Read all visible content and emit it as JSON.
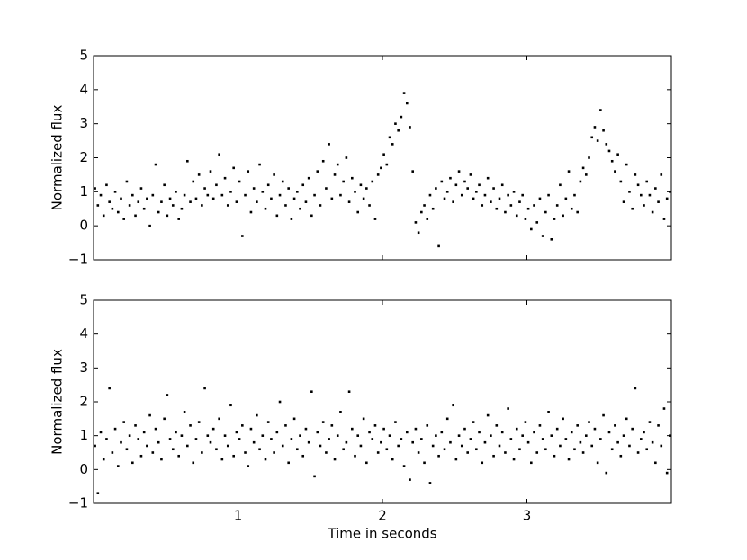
{
  "chart_data": [
    {
      "type": "scatter",
      "ylabel": "Normalized flux",
      "color": "#000000",
      "xlim": [
        0,
        4
      ],
      "ylim": [
        -1,
        5
      ],
      "xticks": [
        1,
        2,
        3
      ],
      "show_xtick_labels": false,
      "yticks": [
        {
          "value": -1,
          "label": "−1"
        },
        0,
        1,
        2,
        3,
        4,
        5
      ],
      "x": [
        0.01,
        0.03,
        0.05,
        0.07,
        0.09,
        0.11,
        0.13,
        0.15,
        0.17,
        0.19,
        0.21,
        0.23,
        0.25,
        0.27,
        0.29,
        0.31,
        0.33,
        0.35,
        0.37,
        0.39,
        0.41,
        0.43,
        0.45,
        0.47,
        0.49,
        0.51,
        0.53,
        0.55,
        0.57,
        0.59,
        0.61,
        0.63,
        0.65,
        0.67,
        0.69,
        0.71,
        0.73,
        0.75,
        0.77,
        0.79,
        0.81,
        0.83,
        0.85,
        0.87,
        0.89,
        0.91,
        0.93,
        0.95,
        0.97,
        0.99,
        1.01,
        1.03,
        1.05,
        1.07,
        1.09,
        1.11,
        1.13,
        1.15,
        1.17,
        1.19,
        1.21,
        1.23,
        1.25,
        1.27,
        1.29,
        1.31,
        1.33,
        1.35,
        1.37,
        1.39,
        1.41,
        1.43,
        1.45,
        1.47,
        1.49,
        1.51,
        1.53,
        1.55,
        1.57,
        1.59,
        1.61,
        1.63,
        1.65,
        1.67,
        1.69,
        1.71,
        1.73,
        1.75,
        1.77,
        1.79,
        1.81,
        1.83,
        1.85,
        1.87,
        1.89,
        1.91,
        1.93,
        1.95,
        1.97,
        1.99,
        2.01,
        2.03,
        2.05,
        2.07,
        2.09,
        2.11,
        2.13,
        2.15,
        2.17,
        2.19,
        2.21,
        2.23,
        2.25,
        2.27,
        2.29,
        2.31,
        2.33,
        2.35,
        2.37,
        2.39,
        2.41,
        2.43,
        2.45,
        2.47,
        2.49,
        2.51,
        2.53,
        2.55,
        2.57,
        2.59,
        2.61,
        2.63,
        2.65,
        2.67,
        2.69,
        2.71,
        2.73,
        2.75,
        2.77,
        2.79,
        2.81,
        2.83,
        2.85,
        2.87,
        2.89,
        2.91,
        2.93,
        2.95,
        2.97,
        2.99,
        3.01,
        3.03,
        3.05,
        3.07,
        3.09,
        3.11,
        3.13,
        3.15,
        3.17,
        3.19,
        3.21,
        3.23,
        3.25,
        3.27,
        3.29,
        3.31,
        3.33,
        3.35,
        3.37,
        3.39,
        3.41,
        3.43,
        3.45,
        3.47,
        3.49,
        3.51,
        3.53,
        3.55,
        3.57,
        3.59,
        3.61,
        3.63,
        3.65,
        3.67,
        3.69,
        3.71,
        3.73,
        3.75,
        3.77,
        3.79,
        3.81,
        3.83,
        3.85,
        3.87,
        3.89,
        3.91,
        3.93,
        3.95,
        3.97,
        3.99
      ],
      "values": [
        1.1,
        0.6,
        0.9,
        0.3,
        1.2,
        0.7,
        0.5,
        1.0,
        0.4,
        0.8,
        0.2,
        1.3,
        0.6,
        0.9,
        0.3,
        0.7,
        1.1,
        0.5,
        0.8,
        0.0,
        0.9,
        1.8,
        0.4,
        0.7,
        1.2,
        0.3,
        0.8,
        0.6,
        1.0,
        0.2,
        0.5,
        0.9,
        1.9,
        0.7,
        1.3,
        0.8,
        1.5,
        0.6,
        1.1,
        0.9,
        1.6,
        0.8,
        1.2,
        2.1,
        0.9,
        1.4,
        0.6,
        1.0,
        1.7,
        0.7,
        1.3,
        -0.3,
        0.9,
        1.6,
        0.4,
        1.1,
        0.7,
        1.8,
        1.0,
        0.5,
        1.2,
        0.8,
        1.5,
        0.3,
        0.9,
        1.3,
        0.6,
        1.1,
        0.2,
        0.8,
        1.0,
        0.5,
        1.2,
        0.7,
        1.4,
        0.3,
        0.9,
        1.6,
        0.6,
        1.9,
        1.1,
        2.4,
        0.8,
        1.5,
        1.8,
        0.9,
        1.3,
        2.0,
        0.7,
        1.4,
        1.0,
        0.4,
        1.2,
        0.8,
        1.1,
        0.6,
        1.3,
        0.2,
        1.5,
        1.7,
        2.1,
        1.8,
        2.6,
        2.4,
        3.0,
        2.8,
        3.2,
        3.9,
        3.6,
        2.9,
        1.6,
        0.1,
        -0.2,
        0.4,
        0.6,
        0.2,
        0.9,
        0.5,
        1.1,
        -0.6,
        1.3,
        0.8,
        1.0,
        1.4,
        0.7,
        1.2,
        1.6,
        0.9,
        1.3,
        1.1,
        1.5,
        0.8,
        1.0,
        1.2,
        0.6,
        0.9,
        1.4,
        0.7,
        1.1,
        0.5,
        0.8,
        1.2,
        0.4,
        0.9,
        0.6,
        1.0,
        0.3,
        0.7,
        0.9,
        0.2,
        0.5,
        -0.1,
        0.6,
        0.1,
        0.8,
        -0.3,
        0.4,
        0.9,
        -0.4,
        0.2,
        0.6,
        1.2,
        0.3,
        0.8,
        1.6,
        0.5,
        0.9,
        0.4,
        1.3,
        1.7,
        1.5,
        2.0,
        2.6,
        2.9,
        2.5,
        3.4,
        2.8,
        2.4,
        2.2,
        1.9,
        1.6,
        2.1,
        1.3,
        0.7,
        1.8,
        1.0,
        0.5,
        1.5,
        1.2,
        0.9,
        0.6,
        1.3,
        0.9,
        0.4,
        1.1,
        0.7,
        1.5,
        0.2,
        0.8,
        1.0
      ]
    },
    {
      "type": "scatter",
      "ylabel": "Normalized flux",
      "xlabel": "Time in seconds",
      "color": "#000000",
      "xlim": [
        0,
        4
      ],
      "ylim": [
        -1,
        5
      ],
      "xticks": [
        1,
        2,
        3
      ],
      "show_xtick_labels": true,
      "yticks": [
        {
          "value": -1,
          "label": "−1"
        },
        0,
        1,
        2,
        3,
        4,
        5
      ],
      "x": [
        0.01,
        0.03,
        0.05,
        0.07,
        0.09,
        0.11,
        0.13,
        0.15,
        0.17,
        0.19,
        0.21,
        0.23,
        0.25,
        0.27,
        0.29,
        0.31,
        0.33,
        0.35,
        0.37,
        0.39,
        0.41,
        0.43,
        0.45,
        0.47,
        0.49,
        0.51,
        0.53,
        0.55,
        0.57,
        0.59,
        0.61,
        0.63,
        0.65,
        0.67,
        0.69,
        0.71,
        0.73,
        0.75,
        0.77,
        0.79,
        0.81,
        0.83,
        0.85,
        0.87,
        0.89,
        0.91,
        0.93,
        0.95,
        0.97,
        0.99,
        1.01,
        1.03,
        1.05,
        1.07,
        1.09,
        1.11,
        1.13,
        1.15,
        1.17,
        1.19,
        1.21,
        1.23,
        1.25,
        1.27,
        1.29,
        1.31,
        1.33,
        1.35,
        1.37,
        1.39,
        1.41,
        1.43,
        1.45,
        1.47,
        1.49,
        1.51,
        1.53,
        1.55,
        1.57,
        1.59,
        1.61,
        1.63,
        1.65,
        1.67,
        1.69,
        1.71,
        1.73,
        1.75,
        1.77,
        1.79,
        1.81,
        1.83,
        1.85,
        1.87,
        1.89,
        1.91,
        1.93,
        1.95,
        1.97,
        1.99,
        2.01,
        2.03,
        2.05,
        2.07,
        2.09,
        2.11,
        2.13,
        2.15,
        2.17,
        2.19,
        2.21,
        2.23,
        2.25,
        2.27,
        2.29,
        2.31,
        2.33,
        2.35,
        2.37,
        2.39,
        2.41,
        2.43,
        2.45,
        2.47,
        2.49,
        2.51,
        2.53,
        2.55,
        2.57,
        2.59,
        2.61,
        2.63,
        2.65,
        2.67,
        2.69,
        2.71,
        2.73,
        2.75,
        2.77,
        2.79,
        2.81,
        2.83,
        2.85,
        2.87,
        2.89,
        2.91,
        2.93,
        2.95,
        2.97,
        2.99,
        3.01,
        3.03,
        3.05,
        3.07,
        3.09,
        3.11,
        3.13,
        3.15,
        3.17,
        3.19,
        3.21,
        3.23,
        3.25,
        3.27,
        3.29,
        3.31,
        3.33,
        3.35,
        3.37,
        3.39,
        3.41,
        3.43,
        3.45,
        3.47,
        3.49,
        3.51,
        3.53,
        3.55,
        3.57,
        3.59,
        3.61,
        3.63,
        3.65,
        3.67,
        3.69,
        3.71,
        3.73,
        3.75,
        3.77,
        3.79,
        3.81,
        3.83,
        3.85,
        3.87,
        3.89,
        3.91,
        3.93,
        3.95,
        3.97,
        3.99
      ],
      "values": [
        0.7,
        -0.7,
        1.1,
        0.3,
        0.9,
        2.4,
        0.5,
        1.2,
        0.1,
        0.8,
        1.4,
        0.6,
        1.0,
        0.2,
        1.3,
        0.9,
        0.4,
        1.1,
        0.7,
        1.6,
        0.5,
        1.2,
        0.8,
        0.3,
        1.5,
        2.2,
        0.9,
        0.6,
        1.1,
        0.4,
        1.0,
        1.7,
        0.7,
        1.3,
        0.2,
        0.9,
        1.4,
        0.5,
        2.4,
        1.0,
        0.8,
        1.2,
        0.6,
        1.5,
        0.3,
        1.0,
        0.7,
        1.9,
        0.4,
        1.1,
        0.9,
        1.3,
        0.5,
        0.1,
        1.2,
        0.8,
        1.6,
        0.6,
        1.0,
        0.3,
        1.4,
        0.9,
        0.5,
        1.1,
        2.0,
        0.7,
        1.3,
        0.2,
        0.9,
        1.5,
        0.6,
        1.0,
        0.4,
        1.2,
        0.8,
        2.3,
        -0.2,
        1.1,
        0.7,
        1.4,
        0.5,
        0.9,
        1.3,
        0.3,
        1.0,
        1.7,
        0.6,
        0.8,
        2.3,
        1.2,
        0.4,
        1.0,
        0.7,
        1.5,
        0.2,
        1.1,
        0.9,
        1.3,
        0.5,
        0.8,
        1.2,
        0.6,
        1.0,
        0.3,
        1.4,
        0.7,
        0.9,
        0.1,
        1.1,
        -0.3,
        0.8,
        1.2,
        0.5,
        0.9,
        0.2,
        1.3,
        -0.4,
        0.7,
        1.0,
        0.4,
        1.1,
        0.6,
        1.5,
        0.8,
        1.9,
        0.3,
        1.0,
        0.7,
        1.2,
        0.5,
        0.9,
        1.4,
        0.6,
        1.1,
        0.2,
        0.8,
        1.6,
        1.0,
        0.4,
        1.3,
        0.7,
        1.1,
        0.5,
        1.8,
        0.9,
        0.3,
        1.2,
        0.6,
        1.0,
        1.4,
        0.8,
        0.2,
        1.1,
        0.5,
        1.3,
        0.9,
        0.6,
        1.7,
        1.0,
        0.4,
        1.2,
        0.7,
        1.5,
        0.9,
        0.3,
        1.1,
        0.6,
        1.3,
        0.8,
        0.5,
        1.0,
        1.4,
        0.7,
        1.2,
        0.2,
        0.9,
        1.6,
        -0.1,
        1.1,
        0.6,
        1.3,
        0.8,
        0.4,
        1.0,
        1.5,
        0.7,
        1.2,
        2.4,
        0.5,
        0.9,
        1.1,
        0.6,
        1.4,
        0.8,
        0.2,
        1.3,
        0.7,
        1.8,
        -0.1,
        1.0
      ]
    }
  ]
}
